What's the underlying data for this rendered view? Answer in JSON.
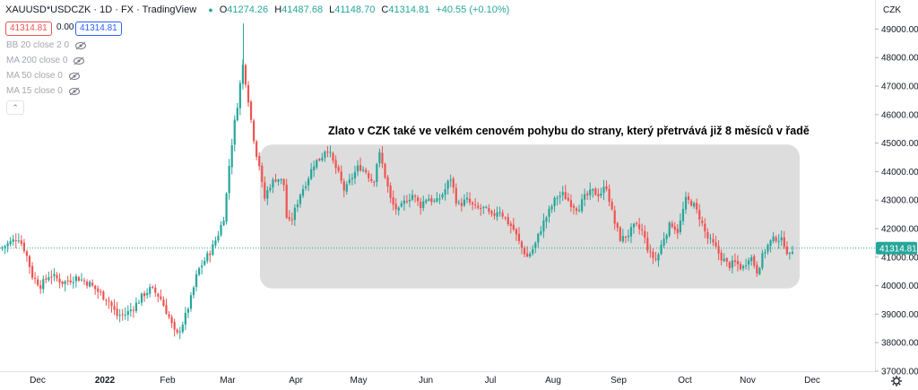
{
  "header": {
    "symbol": "XAUUSD*USDCZK · 1D · FX",
    "source": "· TradingView",
    "o_key": "O",
    "o_val": "41274.26",
    "h_key": "H",
    "h_val": "41487.68",
    "l_key": "L",
    "l_val": "41148.70",
    "c_key": "C",
    "c_val": "41314.81",
    "change": "+40.55 (+0.10%)"
  },
  "price_boxes": {
    "sell": "41314.81",
    "spread": "0.00",
    "buy": "41314.81"
  },
  "indicators": [
    {
      "label": "BB 20 close 2 0",
      "icon": "eye-off-icon"
    },
    {
      "label": "MA 200 close 0",
      "icon": "eye-off-icon"
    },
    {
      "label": "MA 50 close 0",
      "icon": "eye-off-icon"
    },
    {
      "label": "MA 15 close 0",
      "icon": "eye-off-icon"
    }
  ],
  "collapse_icon": "chevron-up-icon",
  "settings_icon": "gear-icon",
  "colors": {
    "up": "#26a69a",
    "down": "#ef5350",
    "band": "#d7d7d7",
    "accent": "#2962ff"
  },
  "chart_data": {
    "type": "candlestick",
    "currency_label": "CZK",
    "annotation": "Zlato v CZK také ve velkém cenovém pohybu do strany, který přetrvává již 8 měsíců v řadě",
    "last_price": "41314.81",
    "last_price_value": 41314.81,
    "ylim": [
      37000,
      49800
    ],
    "y_ticks": [
      {
        "value": 37000,
        "label": "37000.00"
      },
      {
        "value": 38000,
        "label": "38000.00"
      },
      {
        "value": 39000,
        "label": "39000.00"
      },
      {
        "value": 40000,
        "label": "40000.00"
      },
      {
        "value": 41000,
        "label": "41000.00"
      },
      {
        "value": 42000,
        "label": "42000.00"
      },
      {
        "value": 43000,
        "label": "43000.00"
      },
      {
        "value": 44000,
        "label": "44000.00"
      },
      {
        "value": 45000,
        "label": "45000.00"
      },
      {
        "value": 46000,
        "label": "46000.00"
      },
      {
        "value": 47000,
        "label": "47000.00"
      },
      {
        "value": 48000,
        "label": "48000.00"
      },
      {
        "value": 49000,
        "label": "49000.00"
      }
    ],
    "x_ticks": [
      {
        "t": 42,
        "label": "Dec",
        "bold": false
      },
      {
        "t": 117,
        "label": "2022",
        "bold": true
      },
      {
        "t": 187,
        "label": "Feb",
        "bold": false
      },
      {
        "t": 254,
        "label": "Mar",
        "bold": false
      },
      {
        "t": 330,
        "label": "Apr",
        "bold": false
      },
      {
        "t": 400,
        "label": "May",
        "bold": false
      },
      {
        "t": 475,
        "label": "Jun",
        "bold": false
      },
      {
        "t": 547,
        "label": "Jul",
        "bold": false
      },
      {
        "t": 617,
        "label": "Aug",
        "bold": false
      },
      {
        "t": 690,
        "label": "Sep",
        "bold": false
      },
      {
        "t": 764,
        "label": "Oct",
        "bold": false
      },
      {
        "t": 834,
        "label": "Nov",
        "bold": false
      },
      {
        "t": 906,
        "label": "Dec",
        "bold": false
      }
    ],
    "range_band": {
      "t_start": 290,
      "t_end": 892,
      "low": 39900,
      "high": 44950
    },
    "close_path": [
      [
        0,
        41300
      ],
      [
        10,
        41500
      ],
      [
        20,
        41700
      ],
      [
        28,
        41200
      ],
      [
        36,
        40300
      ],
      [
        45,
        40000
      ],
      [
        55,
        40400
      ],
      [
        70,
        40100
      ],
      [
        85,
        40300
      ],
      [
        100,
        40050
      ],
      [
        112,
        39700
      ],
      [
        120,
        39500
      ],
      [
        130,
        38950
      ],
      [
        140,
        39000
      ],
      [
        150,
        39300
      ],
      [
        160,
        39700
      ],
      [
        168,
        39900
      ],
      [
        178,
        39600
      ],
      [
        188,
        38900
      ],
      [
        196,
        38200
      ],
      [
        205,
        38800
      ],
      [
        213,
        39600
      ],
      [
        220,
        40500
      ],
      [
        228,
        40900
      ],
      [
        236,
        41300
      ],
      [
        244,
        41900
      ],
      [
        250,
        42500
      ],
      [
        256,
        44500
      ],
      [
        262,
        45900
      ],
      [
        266,
        46700
      ],
      [
        270,
        47800
      ],
      [
        275,
        46900
      ],
      [
        280,
        45700
      ],
      [
        285,
        44700
      ],
      [
        289,
        44200
      ],
      [
        294,
        43000
      ],
      [
        300,
        43500
      ],
      [
        308,
        43800
      ],
      [
        316,
        43600
      ],
      [
        320,
        42100
      ],
      [
        326,
        42400
      ],
      [
        334,
        43200
      ],
      [
        342,
        43700
      ],
      [
        350,
        44300
      ],
      [
        358,
        44500
      ],
      [
        364,
        44900
      ],
      [
        370,
        44400
      ],
      [
        376,
        44000
      ],
      [
        384,
        43300
      ],
      [
        392,
        43800
      ],
      [
        400,
        44200
      ],
      [
        408,
        44000
      ],
      [
        416,
        43600
      ],
      [
        422,
        44700
      ],
      [
        428,
        44000
      ],
      [
        436,
        42900
      ],
      [
        444,
        42600
      ],
      [
        452,
        43000
      ],
      [
        460,
        43200
      ],
      [
        468,
        42800
      ],
      [
        476,
        43100
      ],
      [
        486,
        42900
      ],
      [
        495,
        43300
      ],
      [
        502,
        43800
      ],
      [
        510,
        42800
      ],
      [
        520,
        43000
      ],
      [
        530,
        42700
      ],
      [
        540,
        42700
      ],
      [
        548,
        42400
      ],
      [
        556,
        42700
      ],
      [
        564,
        42300
      ],
      [
        572,
        42000
      ],
      [
        580,
        41400
      ],
      [
        588,
        41000
      ],
      [
        596,
        41400
      ],
      [
        604,
        42100
      ],
      [
        612,
        42600
      ],
      [
        620,
        43100
      ],
      [
        628,
        43200
      ],
      [
        636,
        42900
      ],
      [
        644,
        42700
      ],
      [
        652,
        43100
      ],
      [
        660,
        43300
      ],
      [
        668,
        43200
      ],
      [
        676,
        43500
      ],
      [
        684,
        42300
      ],
      [
        692,
        41600
      ],
      [
        700,
        41800
      ],
      [
        708,
        42100
      ],
      [
        716,
        41900
      ],
      [
        724,
        41100
      ],
      [
        732,
        40900
      ],
      [
        740,
        41700
      ],
      [
        748,
        42200
      ],
      [
        756,
        41900
      ],
      [
        764,
        43000
      ],
      [
        772,
        42900
      ],
      [
        780,
        42400
      ],
      [
        788,
        41700
      ],
      [
        796,
        41400
      ],
      [
        804,
        41000
      ],
      [
        812,
        40700
      ],
      [
        820,
        40800
      ],
      [
        828,
        40600
      ],
      [
        836,
        41100
      ],
      [
        844,
        40500
      ],
      [
        852,
        41200
      ],
      [
        858,
        41500
      ],
      [
        866,
        41700
      ],
      [
        874,
        41500
      ],
      [
        880,
        41000
      ],
      [
        884,
        41310
      ]
    ]
  }
}
